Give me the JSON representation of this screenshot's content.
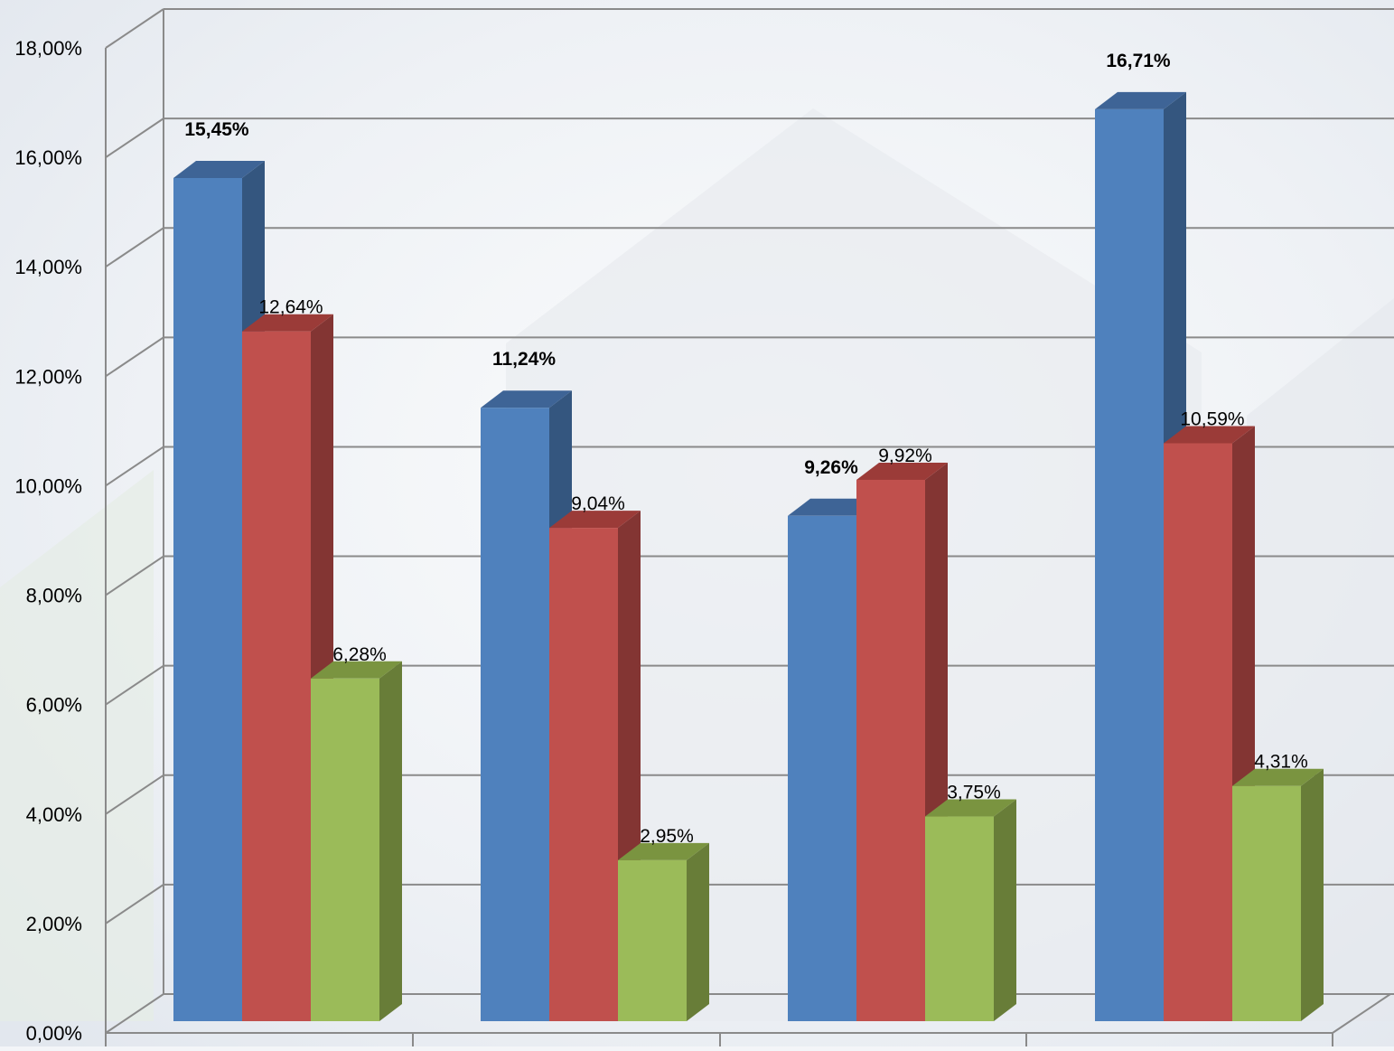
{
  "chart_data": {
    "type": "bar",
    "title": "",
    "xlabel": "",
    "ylabel": "",
    "categories": [
      "",
      "",
      "",
      ""
    ],
    "ylim": [
      0,
      18
    ],
    "y_ticks": [
      "0,00%",
      "2,00%",
      "4,00%",
      "6,00%",
      "8,00%",
      "10,00%",
      "12,00%",
      "14,00%",
      "16,00%",
      "18,00%"
    ],
    "grid": true,
    "legend": "none",
    "style": "3d-clustered-column",
    "series": [
      {
        "color": "#4f81bd",
        "side_color": "#34567f",
        "top_color": "#3e6496",
        "label_weight": "bold",
        "values": [
          15.45,
          11.24,
          9.26,
          16.71
        ],
        "labels": [
          "15,45%",
          "11,24%",
          "9,26%",
          "16,71%"
        ]
      },
      {
        "color": "#c0504d",
        "side_color": "#833533",
        "top_color": "#9b3b38",
        "label_weight": "normal",
        "values": [
          12.64,
          9.04,
          9.92,
          10.59
        ],
        "labels": [
          "12,64%",
          "9,04%",
          "9,92%",
          "10,59%"
        ]
      },
      {
        "color": "#9bbb59",
        "side_color": "#687d38",
        "top_color": "#7a9440",
        "label_weight": "normal",
        "values": [
          6.28,
          2.95,
          3.75,
          4.31
        ],
        "labels": [
          "6,28%",
          "2,95%",
          "3,75%",
          "4,31%"
        ]
      }
    ]
  }
}
